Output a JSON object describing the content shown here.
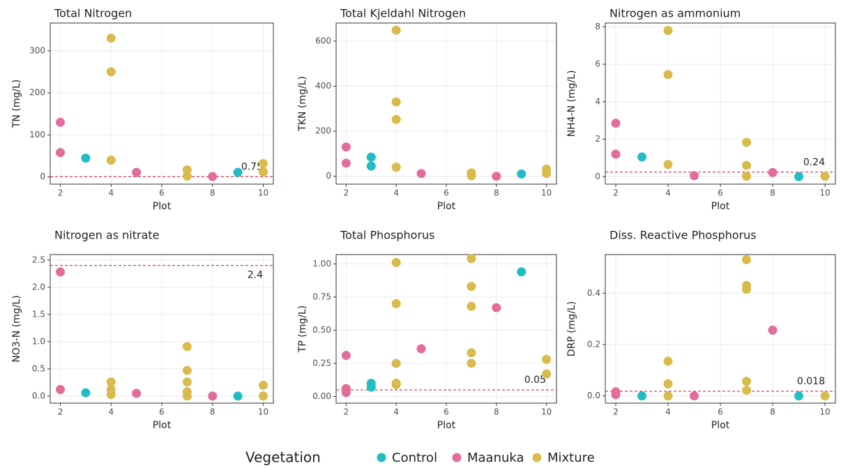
{
  "chart_data": [
    {
      "type": "scatter",
      "title": "Total Nitrogen",
      "xlabel": "Plot",
      "ylabel": "TN (mg/L)",
      "xlim": [
        1.6,
        10.4
      ],
      "xticks": [
        2,
        4,
        6,
        8,
        10
      ],
      "ylim": [
        -17,
        366
      ],
      "yticks": [
        0,
        100,
        200,
        300
      ],
      "grid": true,
      "reference_line": {
        "value": 0.75
      },
      "series": [
        {
          "name": "Control",
          "color": "#22bcc4",
          "x": [
            3,
            9
          ],
          "values": [
            45,
            11
          ]
        },
        {
          "name": "Maanuka",
          "color": "#e36c9a",
          "x": [
            2,
            2,
            5,
            8
          ],
          "values": [
            130,
            58,
            11,
            1
          ]
        },
        {
          "name": "Mixture",
          "color": "#d9bb4c",
          "x": [
            4,
            4,
            4,
            7,
            7,
            10,
            10
          ],
          "values": [
            330,
            250,
            40,
            17,
            2,
            32,
            12
          ]
        }
      ]
    },
    {
      "type": "scatter",
      "title": "Total Kjeldahl Nitrogen",
      "xlabel": "Plot",
      "ylabel": "TKN (mg/L)",
      "xlim": [
        1.6,
        10.4
      ],
      "xticks": [
        2,
        4,
        6,
        8,
        10
      ],
      "ylim": [
        -35,
        680
      ],
      "yticks": [
        0,
        200,
        400,
        600
      ],
      "grid": true,
      "series": [
        {
          "name": "Control",
          "color": "#22bcc4",
          "x": [
            3,
            3,
            9
          ],
          "values": [
            85,
            45,
            10
          ]
        },
        {
          "name": "Maanuka",
          "color": "#e36c9a",
          "x": [
            2,
            2,
            5,
            8
          ],
          "values": [
            130,
            58,
            12,
            0
          ]
        },
        {
          "name": "Mixture",
          "color": "#d9bb4c",
          "x": [
            4,
            4,
            4,
            4,
            7,
            7,
            10,
            10
          ],
          "values": [
            648,
            330,
            252,
            40,
            15,
            2,
            32,
            12
          ]
        }
      ]
    },
    {
      "type": "scatter",
      "title": "Nitrogen as ammonium",
      "xlabel": "Plot",
      "ylabel": "NH4-N (mg/L)",
      "xlim": [
        1.6,
        10.4
      ],
      "xticks": [
        2,
        4,
        6,
        8,
        10
      ],
      "ylim": [
        -0.4,
        8.2
      ],
      "yticks": [
        0,
        2,
        4,
        6,
        8
      ],
      "grid": true,
      "reference_line": {
        "value": 0.24
      },
      "series": [
        {
          "name": "Control",
          "color": "#22bcc4",
          "x": [
            3,
            9
          ],
          "values": [
            1.05,
            0
          ]
        },
        {
          "name": "Maanuka",
          "color": "#e36c9a",
          "x": [
            2,
            2,
            5,
            8
          ],
          "values": [
            2.85,
            1.2,
            0.05,
            0.22
          ]
        },
        {
          "name": "Mixture",
          "color": "#d9bb4c",
          "x": [
            4,
            4,
            4,
            7,
            7,
            7,
            10
          ],
          "values": [
            7.8,
            5.45,
            0.65,
            1.83,
            0.6,
            0.02,
            0.02
          ]
        }
      ]
    },
    {
      "type": "scatter",
      "title": "Nitrogen as nitrate",
      "xlabel": "Plot",
      "ylabel": "NO3-N (mg/L)",
      "xlim": [
        1.6,
        10.4
      ],
      "xticks": [
        2,
        4,
        6,
        8,
        10
      ],
      "ylim": [
        -0.13,
        2.6
      ],
      "yticks": [
        {
          "value": 0,
          "label": "0.0"
        },
        0.5,
        {
          "value": 1,
          "label": "1.0"
        },
        1.5,
        {
          "value": 2,
          "label": "2.0"
        },
        2.5
      ],
      "grid": true,
      "reference_line": {
        "value": 2.4
      },
      "series": [
        {
          "name": "Control",
          "color": "#22bcc4",
          "x": [
            3,
            9
          ],
          "values": [
            0.06,
            0
          ]
        },
        {
          "name": "Maanuka",
          "color": "#e36c9a",
          "x": [
            2,
            2,
            5,
            8
          ],
          "values": [
            2.28,
            0.12,
            0.05,
            0
          ]
        },
        {
          "name": "Mixture",
          "color": "#d9bb4c",
          "x": [
            4,
            4,
            4,
            7,
            7,
            7,
            7,
            7,
            10,
            10
          ],
          "values": [
            0.26,
            0.12,
            0.03,
            0.91,
            0.47,
            0.26,
            0.08,
            0,
            0.2,
            0
          ]
        }
      ]
    },
    {
      "type": "scatter",
      "title": "Total Phosphorus",
      "xlabel": "Plot",
      "ylabel": "TP (mg/L)",
      "xlim": [
        1.6,
        10.4
      ],
      "xticks": [
        2,
        4,
        6,
        8,
        10
      ],
      "ylim": [
        -0.05,
        1.07
      ],
      "yticks": [
        {
          "value": 0,
          "label": "0.00"
        },
        0.25,
        {
          "value": 0.5,
          "label": "0.50"
        },
        0.75,
        {
          "value": 1,
          "label": "1.00"
        }
      ],
      "grid": true,
      "reference_line": {
        "value": 0.05
      },
      "series": [
        {
          "name": "Control",
          "color": "#22bcc4",
          "x": [
            3,
            3,
            9
          ],
          "values": [
            0.1,
            0.07,
            0.94
          ]
        },
        {
          "name": "Maanuka",
          "color": "#e36c9a",
          "x": [
            2,
            2,
            2,
            5,
            8
          ],
          "values": [
            0.31,
            0.06,
            0.03,
            0.36,
            0.67
          ]
        },
        {
          "name": "Mixture",
          "color": "#d9bb4c",
          "x": [
            4,
            4,
            4,
            4,
            4,
            7,
            7,
            7,
            7,
            7,
            10,
            10
          ],
          "values": [
            1.01,
            0.7,
            0.25,
            0.1,
            0.09,
            1.04,
            0.83,
            0.68,
            0.33,
            0.25,
            0.28,
            0.17
          ]
        }
      ]
    },
    {
      "type": "scatter",
      "title": "Diss. Reactive Phosphorus",
      "xlabel": "Plot",
      "ylabel": "DRP (mg/L)",
      "xlim": [
        1.6,
        10.4
      ],
      "xticks": [
        2,
        4,
        6,
        8,
        10
      ],
      "ylim": [
        -0.028,
        0.55
      ],
      "yticks": [
        {
          "value": 0,
          "label": "0.0"
        },
        0.2,
        0.4
      ],
      "grid": true,
      "reference_line": {
        "value": 0.018
      },
      "series": [
        {
          "name": "Control",
          "color": "#22bcc4",
          "x": [
            3,
            9
          ],
          "values": [
            0,
            0
          ]
        },
        {
          "name": "Maanuka",
          "color": "#e36c9a",
          "x": [
            2,
            2,
            5,
            8
          ],
          "values": [
            0.016,
            0.005,
            0,
            0.256
          ]
        },
        {
          "name": "Mixture",
          "color": "#d9bb4c",
          "x": [
            4,
            4,
            4,
            7,
            7,
            7,
            7,
            7,
            10
          ],
          "values": [
            0.135,
            0.047,
            0,
            0.53,
            0.43,
            0.415,
            0.057,
            0.022,
            0
          ]
        }
      ]
    }
  ],
  "legend_title": "Vegetation"
}
